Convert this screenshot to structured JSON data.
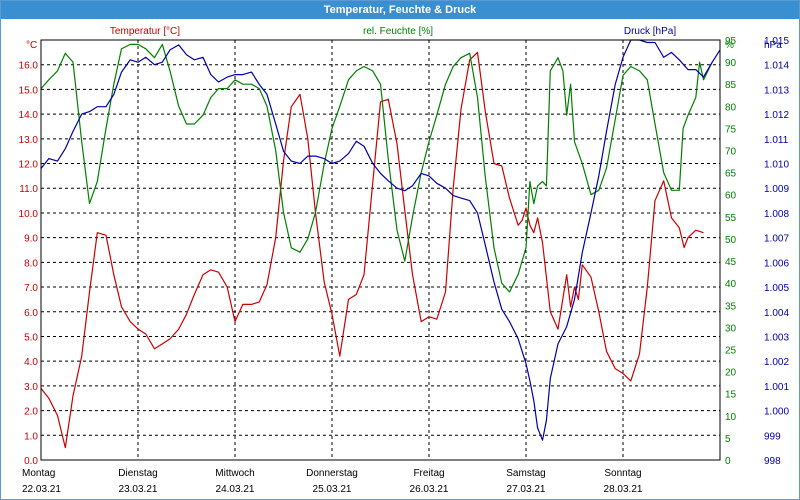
{
  "window": {
    "title": "Temperatur, Feuchte & Druck"
  },
  "colors": {
    "temperature": "#cc0000",
    "humidity": "#008000",
    "pressure": "#0000aa",
    "grid": "#000000",
    "titlebar": "#3a8fd0"
  },
  "chart_data": {
    "type": "line",
    "title": "Temperatur, Feuchte & Druck",
    "grid": true,
    "x_axis": {
      "categories": [
        {
          "day": "Montag",
          "date": "22.03.21"
        },
        {
          "day": "Dienstag",
          "date": "23.03.21"
        },
        {
          "day": "Mittwoch",
          "date": "24.03.21"
        },
        {
          "day": "Donnerstag",
          "date": "25.03.21"
        },
        {
          "day": "Freitag",
          "date": "26.03.21"
        },
        {
          "day": "Samstag",
          "date": "27.03.21"
        },
        {
          "day": "Sonntag",
          "date": "28.03.21"
        }
      ],
      "range_days": [
        0,
        7
      ]
    },
    "axes": {
      "temperature": {
        "label": "Temperatur [°C]",
        "unit": "°C",
        "range": [
          0,
          17
        ],
        "ticks": [
          "0.0",
          "1.0",
          "2.0",
          "3.0",
          "4.0",
          "5.0",
          "6.0",
          "7.0",
          "8.0",
          "9.0",
          "10.0",
          "11.0",
          "12.0",
          "13.0",
          "14.0",
          "15.0",
          "16.0"
        ]
      },
      "humidity": {
        "label": "rel. Feuchte [%]",
        "unit": "%",
        "range": [
          0,
          95
        ],
        "ticks": [
          "0",
          "5",
          "10",
          "15",
          "20",
          "25",
          "30",
          "35",
          "40",
          "45",
          "50",
          "55",
          "60",
          "65",
          "70",
          "75",
          "80",
          "85",
          "90",
          "95"
        ]
      },
      "pressure": {
        "label": "Druck [hPa]",
        "unit": "hPa",
        "range": [
          998,
          1015
        ],
        "ticks": [
          "998",
          "999",
          "1.000",
          "1.001",
          "1.002",
          "1.003",
          "1.004",
          "1.005",
          "1.006",
          "1.007",
          "1.008",
          "1.009",
          "1.010",
          "1.011",
          "1.012",
          "1.013",
          "1.014",
          "1.015"
        ]
      }
    },
    "series": [
      {
        "name": "Temperatur [°C]",
        "axis": "temperature",
        "points": [
          [
            0,
            2.9
          ],
          [
            0.08,
            2.5
          ],
          [
            0.17,
            1.8
          ],
          [
            0.25,
            0.5
          ],
          [
            0.33,
            2.6
          ],
          [
            0.42,
            4.2
          ],
          [
            0.5,
            6.8
          ],
          [
            0.58,
            9.2
          ],
          [
            0.67,
            9.1
          ],
          [
            0.75,
            7.5
          ],
          [
            0.83,
            6.2
          ],
          [
            0.92,
            5.6
          ],
          [
            1,
            5.3
          ],
          [
            1.08,
            5.1
          ],
          [
            1.17,
            4.5
          ],
          [
            1.25,
            4.7
          ],
          [
            1.33,
            4.9
          ],
          [
            1.42,
            5.3
          ],
          [
            1.5,
            5.9
          ],
          [
            1.58,
            6.7
          ],
          [
            1.67,
            7.5
          ],
          [
            1.75,
            7.7
          ],
          [
            1.83,
            7.6
          ],
          [
            1.92,
            7.0
          ],
          [
            2,
            5.6
          ],
          [
            2.08,
            6.3
          ],
          [
            2.17,
            6.3
          ],
          [
            2.25,
            6.4
          ],
          [
            2.33,
            7.1
          ],
          [
            2.42,
            9.0
          ],
          [
            2.5,
            12.1
          ],
          [
            2.58,
            14.3
          ],
          [
            2.67,
            14.8
          ],
          [
            2.75,
            13.0
          ],
          [
            2.83,
            10.0
          ],
          [
            2.92,
            7.2
          ],
          [
            3,
            5.9
          ],
          [
            3.08,
            4.2
          ],
          [
            3.17,
            6.5
          ],
          [
            3.25,
            6.7
          ],
          [
            3.33,
            7.5
          ],
          [
            3.42,
            11.2
          ],
          [
            3.5,
            14.5
          ],
          [
            3.58,
            14.6
          ],
          [
            3.67,
            12.8
          ],
          [
            3.75,
            10.1
          ],
          [
            3.83,
            7.5
          ],
          [
            3.92,
            5.6
          ],
          [
            4,
            5.8
          ],
          [
            4.08,
            5.7
          ],
          [
            4.17,
            6.8
          ],
          [
            4.25,
            11.0
          ],
          [
            4.33,
            14.2
          ],
          [
            4.42,
            16.2
          ],
          [
            4.5,
            16.5
          ],
          [
            4.58,
            14.1
          ],
          [
            4.67,
            12.0
          ],
          [
            4.75,
            11.9
          ],
          [
            4.83,
            10.6
          ],
          [
            4.92,
            9.5
          ],
          [
            4.96,
            9.7
          ],
          [
            5,
            10.2
          ],
          [
            5.04,
            9.5
          ],
          [
            5.08,
            9.2
          ],
          [
            5.12,
            9.8
          ],
          [
            5.17,
            8.8
          ],
          [
            5.25,
            6.0
          ],
          [
            5.33,
            5.3
          ],
          [
            5.42,
            7.5
          ],
          [
            5.46,
            6.2
          ],
          [
            5.5,
            7.0
          ],
          [
            5.54,
            6.5
          ],
          [
            5.58,
            7.9
          ],
          [
            5.67,
            7.4
          ],
          [
            5.75,
            6.0
          ],
          [
            5.83,
            4.4
          ],
          [
            5.92,
            3.7
          ],
          [
            6,
            3.5
          ],
          [
            6.08,
            3.2
          ],
          [
            6.17,
            4.3
          ],
          [
            6.25,
            7.0
          ],
          [
            6.33,
            10.5
          ],
          [
            6.42,
            11.3
          ],
          [
            6.5,
            9.8
          ],
          [
            6.58,
            9.4
          ],
          [
            6.63,
            8.6
          ],
          [
            6.67,
            9.0
          ],
          [
            6.75,
            9.3
          ],
          [
            6.83,
            9.2
          ]
        ]
      },
      {
        "name": "rel. Feuchte [%]",
        "axis": "humidity",
        "points": [
          [
            0,
            84
          ],
          [
            0.08,
            86
          ],
          [
            0.17,
            88
          ],
          [
            0.25,
            92
          ],
          [
            0.33,
            90
          ],
          [
            0.42,
            72
          ],
          [
            0.5,
            58
          ],
          [
            0.58,
            63
          ],
          [
            0.67,
            75
          ],
          [
            0.75,
            85
          ],
          [
            0.83,
            93
          ],
          [
            0.92,
            94
          ],
          [
            1,
            94
          ],
          [
            1.08,
            93
          ],
          [
            1.17,
            91
          ],
          [
            1.25,
            94
          ],
          [
            1.33,
            88
          ],
          [
            1.42,
            80
          ],
          [
            1.5,
            76
          ],
          [
            1.58,
            76
          ],
          [
            1.67,
            78
          ],
          [
            1.75,
            82
          ],
          [
            1.83,
            84
          ],
          [
            1.92,
            84
          ],
          [
            2,
            86
          ],
          [
            2.08,
            85
          ],
          [
            2.17,
            85
          ],
          [
            2.25,
            84
          ],
          [
            2.33,
            80
          ],
          [
            2.42,
            70
          ],
          [
            2.5,
            56
          ],
          [
            2.58,
            48
          ],
          [
            2.67,
            47
          ],
          [
            2.75,
            50
          ],
          [
            2.83,
            56
          ],
          [
            2.92,
            67
          ],
          [
            3,
            75
          ],
          [
            3.08,
            80
          ],
          [
            3.17,
            86
          ],
          [
            3.25,
            88
          ],
          [
            3.33,
            89
          ],
          [
            3.42,
            88
          ],
          [
            3.5,
            85
          ],
          [
            3.58,
            68
          ],
          [
            3.67,
            52
          ],
          [
            3.75,
            45
          ],
          [
            3.83,
            55
          ],
          [
            3.92,
            65
          ],
          [
            4,
            72
          ],
          [
            4.08,
            78
          ],
          [
            4.17,
            85
          ],
          [
            4.25,
            89
          ],
          [
            4.33,
            91
          ],
          [
            4.42,
            92
          ],
          [
            4.5,
            82
          ],
          [
            4.58,
            64
          ],
          [
            4.67,
            48
          ],
          [
            4.75,
            40
          ],
          [
            4.83,
            38
          ],
          [
            4.92,
            42
          ],
          [
            5,
            48
          ],
          [
            5.04,
            63
          ],
          [
            5.08,
            58
          ],
          [
            5.12,
            62
          ],
          [
            5.17,
            63
          ],
          [
            5.21,
            62
          ],
          [
            5.25,
            88
          ],
          [
            5.33,
            91
          ],
          [
            5.38,
            88
          ],
          [
            5.42,
            78
          ],
          [
            5.46,
            85
          ],
          [
            5.5,
            72
          ],
          [
            5.58,
            67
          ],
          [
            5.67,
            60
          ],
          [
            5.75,
            61
          ],
          [
            5.83,
            66
          ],
          [
            5.92,
            77
          ],
          [
            6,
            87
          ],
          [
            6.08,
            89
          ],
          [
            6.17,
            88
          ],
          [
            6.25,
            86
          ],
          [
            6.33,
            76
          ],
          [
            6.42,
            65
          ],
          [
            6.5,
            61
          ],
          [
            6.58,
            61
          ],
          [
            6.62,
            75
          ],
          [
            6.67,
            78
          ],
          [
            6.75,
            82
          ],
          [
            6.79,
            90
          ],
          [
            6.83,
            86
          ],
          [
            6.92,
            90
          ]
        ]
      },
      {
        "name": "Druck [hPa]",
        "axis": "pressure",
        "points": [
          [
            0,
            1009.8
          ],
          [
            0.08,
            1010.2
          ],
          [
            0.17,
            1010.1
          ],
          [
            0.25,
            1010.6
          ],
          [
            0.33,
            1011.3
          ],
          [
            0.42,
            1012.0
          ],
          [
            0.5,
            1012.1
          ],
          [
            0.58,
            1012.3
          ],
          [
            0.67,
            1012.3
          ],
          [
            0.75,
            1012.8
          ],
          [
            0.83,
            1013.7
          ],
          [
            0.92,
            1014.2
          ],
          [
            1,
            1014.1
          ],
          [
            1.08,
            1014.3
          ],
          [
            1.17,
            1014.0
          ],
          [
            1.25,
            1014.1
          ],
          [
            1.33,
            1014.6
          ],
          [
            1.42,
            1014.8
          ],
          [
            1.5,
            1014.4
          ],
          [
            1.58,
            1014.2
          ],
          [
            1.67,
            1014.3
          ],
          [
            1.75,
            1013.6
          ],
          [
            1.83,
            1013.3
          ],
          [
            1.92,
            1013.5
          ],
          [
            2,
            1013.6
          ],
          [
            2.08,
            1013.6
          ],
          [
            2.17,
            1013.7
          ],
          [
            2.25,
            1013.2
          ],
          [
            2.33,
            1012.8
          ],
          [
            2.42,
            1011.6
          ],
          [
            2.5,
            1010.5
          ],
          [
            2.58,
            1010.1
          ],
          [
            2.67,
            1010.0
          ],
          [
            2.75,
            1010.3
          ],
          [
            2.83,
            1010.3
          ],
          [
            2.92,
            1010.2
          ],
          [
            3,
            1010.0
          ],
          [
            3.08,
            1010.1
          ],
          [
            3.17,
            1010.4
          ],
          [
            3.25,
            1010.9
          ],
          [
            3.33,
            1010.7
          ],
          [
            3.42,
            1010.0
          ],
          [
            3.5,
            1009.6
          ],
          [
            3.58,
            1009.3
          ],
          [
            3.67,
            1009.0
          ],
          [
            3.75,
            1008.9
          ],
          [
            3.83,
            1009.1
          ],
          [
            3.92,
            1009.6
          ],
          [
            4,
            1009.5
          ],
          [
            4.08,
            1009.2
          ],
          [
            4.17,
            1009.0
          ],
          [
            4.25,
            1008.7
          ],
          [
            4.33,
            1008.6
          ],
          [
            4.42,
            1008.5
          ],
          [
            4.5,
            1008.0
          ],
          [
            4.58,
            1006.7
          ],
          [
            4.67,
            1005.2
          ],
          [
            4.75,
            1004.1
          ],
          [
            4.83,
            1003.6
          ],
          [
            4.92,
            1002.9
          ],
          [
            5,
            1001.9
          ],
          [
            5.04,
            1001.2
          ],
          [
            5.08,
            1000.4
          ],
          [
            5.12,
            999.3
          ],
          [
            5.17,
            998.8
          ],
          [
            5.21,
            999.6
          ],
          [
            5.25,
            1001.3
          ],
          [
            5.33,
            1002.7
          ],
          [
            5.42,
            1003.4
          ],
          [
            5.5,
            1004.5
          ],
          [
            5.58,
            1006.4
          ],
          [
            5.67,
            1008.0
          ],
          [
            5.75,
            1009.5
          ],
          [
            5.83,
            1011.3
          ],
          [
            5.92,
            1013.2
          ],
          [
            6,
            1014.3
          ],
          [
            6.08,
            1015.0
          ],
          [
            6.17,
            1015.0
          ],
          [
            6.25,
            1014.9
          ],
          [
            6.33,
            1014.9
          ],
          [
            6.42,
            1014.3
          ],
          [
            6.5,
            1014.5
          ],
          [
            6.58,
            1014.2
          ],
          [
            6.67,
            1013.8
          ],
          [
            6.75,
            1013.8
          ],
          [
            6.83,
            1013.5
          ],
          [
            6.92,
            1014.1
          ],
          [
            7,
            1014.6
          ]
        ]
      }
    ]
  }
}
